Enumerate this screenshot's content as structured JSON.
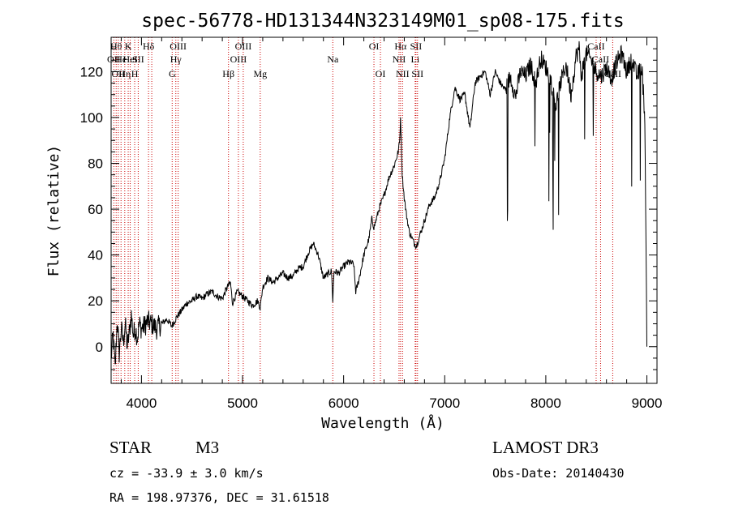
{
  "chart_data": {
    "type": "line",
    "title": "spec-56778-HD131344N323149M01_sp08-175.fits",
    "xlabel": "Wavelength (Å)",
    "ylabel": "Flux (relative)",
    "xlim": [
      3700,
      9100
    ],
    "ylim": [
      -16,
      135
    ],
    "xticks": [
      4000,
      5000,
      6000,
      7000,
      8000,
      9000
    ],
    "yticks": [
      0,
      20,
      40,
      60,
      80,
      100,
      120
    ],
    "grid": false,
    "series": [
      {
        "name": "spectrum",
        "x": [
          3700,
          3720,
          3740,
          3760,
          3780,
          3800,
          3820,
          3840,
          3860,
          3880,
          3900,
          3920,
          3940,
          3960,
          3980,
          4000,
          4030,
          4060,
          4100,
          4150,
          4200,
          4250,
          4300,
          4350,
          4400,
          4450,
          4500,
          4550,
          4600,
          4650,
          4700,
          4750,
          4800,
          4850,
          4880,
          4900,
          4950,
          5000,
          5050,
          5100,
          5150,
          5175,
          5200,
          5250,
          5300,
          5350,
          5400,
          5450,
          5500,
          5550,
          5600,
          5650,
          5700,
          5750,
          5800,
          5850,
          5880,
          5893,
          5905,
          5950,
          6000,
          6050,
          6100,
          6120,
          6150,
          6200,
          6250,
          6280,
          6300,
          6350,
          6400,
          6450,
          6500,
          6540,
          6555,
          6563,
          6570,
          6580,
          6600,
          6620,
          6650,
          6700,
          6720,
          6750,
          6800,
          6850,
          6900,
          6950,
          7000,
          7050,
          7100,
          7150,
          7200,
          7250,
          7300,
          7350,
          7400,
          7450,
          7500,
          7550,
          7600,
          7650,
          7700,
          7750,
          7800,
          7850,
          7900,
          7950,
          8000,
          8050,
          8100,
          8150,
          8200,
          8250,
          8300,
          8330,
          8350,
          8400,
          8450,
          8500,
          8550,
          8600,
          8650,
          8700,
          8750,
          8800,
          8850,
          8900,
          8950,
          8980,
          9000
        ],
        "y": [
          -5,
          5,
          -10,
          12,
          -3,
          8,
          2,
          10,
          0,
          6,
          14,
          5,
          8,
          4,
          10,
          8,
          9,
          11,
          10,
          8,
          10,
          12,
          9,
          13,
          16,
          19,
          20,
          22,
          21,
          23,
          24,
          22,
          21,
          26,
          28,
          19,
          24,
          22,
          20,
          18,
          20,
          17,
          26,
          30,
          28,
          30,
          32,
          30,
          31,
          34,
          35,
          41,
          45,
          40,
          30,
          32,
          33,
          20,
          33,
          32,
          35,
          37,
          36,
          24,
          29,
          40,
          47,
          56,
          52,
          60,
          66,
          74,
          79,
          85,
          90,
          100,
          90,
          75,
          65,
          58,
          50,
          45,
          44,
          48,
          55,
          62,
          65,
          72,
          82,
          100,
          113,
          108,
          110,
          95,
          115,
          118,
          120,
          110,
          120,
          115,
          112,
          118,
          109,
          120,
          118,
          123,
          115,
          126,
          122,
          116,
          105,
          116,
          123,
          110,
          127,
          130,
          118,
          128,
          125,
          120,
          118,
          122,
          117,
          124,
          128,
          120,
          126,
          118,
          122,
          100,
          0
        ]
      }
    ],
    "line_markers": [
      {
        "x": 3727,
        "label": "OII",
        "row": 2
      },
      {
        "x": 3750,
        "label": "Hθ",
        "row": 1
      },
      {
        "x": 3771,
        "label": "OII",
        "row": 3
      },
      {
        "x": 3798,
        "label": "He",
        "row": 2
      },
      {
        "x": 3835,
        "label": "Hη",
        "row": 3
      },
      {
        "x": 3869,
        "label": "K",
        "row": 1
      },
      {
        "x": 3889,
        "label": "HeI",
        "row": 2
      },
      {
        "x": 3933,
        "label": "H",
        "row": 3
      },
      {
        "x": 3968,
        "label": "SII",
        "row": 2
      },
      {
        "x": 4070,
        "label": "Hδ",
        "row": 1
      },
      {
        "x": 4102,
        "label": "",
        "row": 0
      },
      {
        "x": 4304,
        "label": "G",
        "row": 3
      },
      {
        "x": 4340,
        "label": "Hγ",
        "row": 2
      },
      {
        "x": 4363,
        "label": "OIII",
        "row": 1
      },
      {
        "x": 4861,
        "label": "Hβ",
        "row": 3
      },
      {
        "x": 4959,
        "label": "OIII",
        "row": 2
      },
      {
        "x": 5007,
        "label": "OIII",
        "row": 1
      },
      {
        "x": 5175,
        "label": "Mg",
        "row": 3
      },
      {
        "x": 5893,
        "label": "Na",
        "row": 2
      },
      {
        "x": 6300,
        "label": "OI",
        "row": 1
      },
      {
        "x": 6364,
        "label": "OI",
        "row": 3
      },
      {
        "x": 6548,
        "label": "NII",
        "row": 2
      },
      {
        "x": 6563,
        "label": "Hα",
        "row": 1
      },
      {
        "x": 6583,
        "label": "NII",
        "row": 3
      },
      {
        "x": 6708,
        "label": "Li",
        "row": 2
      },
      {
        "x": 6716,
        "label": "SII",
        "row": 1
      },
      {
        "x": 6731,
        "label": "SII",
        "row": 3
      },
      {
        "x": 8498,
        "label": "CaII",
        "row": 1
      },
      {
        "x": 8542,
        "label": "CaII",
        "row": 2
      },
      {
        "x": 8662,
        "label": "CaII",
        "row": 3
      }
    ]
  },
  "info": {
    "class": "STAR",
    "subclass": "M3",
    "survey": "LAMOST DR3",
    "redshift": "cz = -33.9 ± 3.0 km/s",
    "obs_date": "Obs-Date: 20140430",
    "coords": "RA = 198.97376, DEC =  31.61518"
  },
  "colors": {
    "spectrum": "#000000",
    "marker": "#cc0000",
    "axis": "#000000"
  }
}
